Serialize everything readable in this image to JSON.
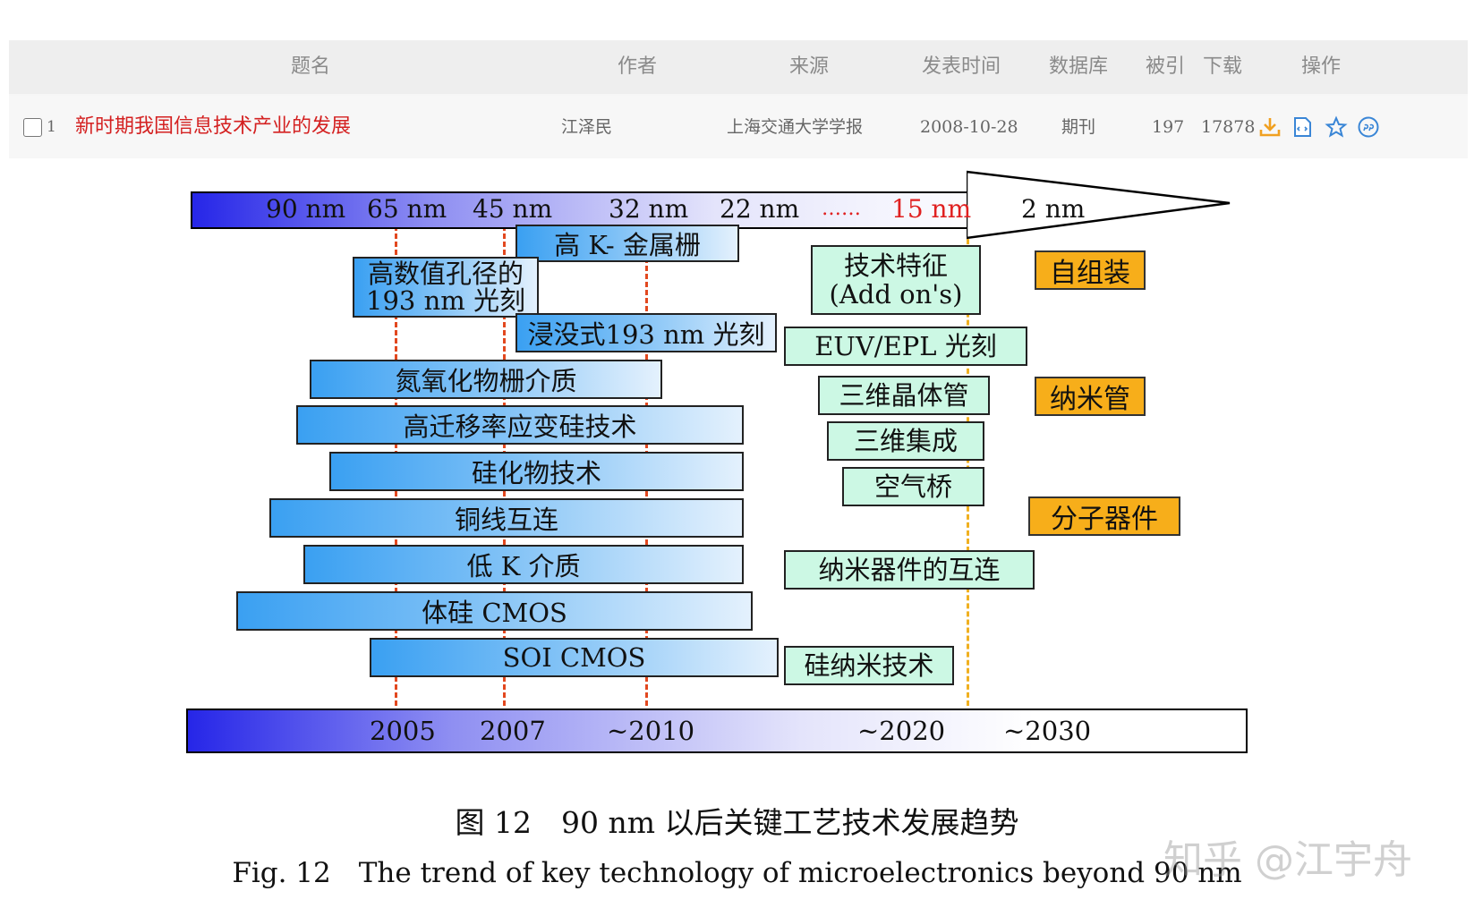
{
  "table": {
    "headers": {
      "title": "题名",
      "author": "作者",
      "source": "来源",
      "date": "发表时间",
      "database": "数据库",
      "cited": "被引",
      "downloads": "下载",
      "actions": "操作"
    },
    "row": {
      "index": "1",
      "title": "新时期我国信息技术产业的发展",
      "author": "江泽民",
      "source": "上海交通大学学报",
      "date": "2008-10-28",
      "database": "期刊",
      "cited": "197",
      "downloads": "17878"
    },
    "action_icons": [
      "download-icon",
      "html-reader-icon",
      "favorite-icon",
      "quote-icon"
    ]
  },
  "figure": {
    "nodes": [
      "90 nm",
      "65 nm",
      "45 nm",
      "32 nm",
      "22 nm",
      "……",
      "15 nm",
      "2 nm"
    ],
    "bars": [
      "高 K- 金属栅",
      "高数值孔径的",
      "193 nm 光刻",
      "浸没式193 nm 光刻",
      "氮氧化物栅介质",
      "高迁移率应变硅技术",
      "硅化物技术",
      "铜线互连",
      "低 K 介质",
      "体硅 CMOS",
      "SOI CMOS"
    ],
    "addons": {
      "line1": "技术特征",
      "line2": "(Add on's)",
      "items": [
        "EUV/EPL 光刻",
        "三维晶体管",
        "三维集成",
        "空气桥",
        "纳米器件的互连",
        "硅纳米技术"
      ]
    },
    "future": [
      "自组装",
      "纳米管",
      "分子器件"
    ],
    "years": [
      "2005",
      "2007",
      "~2010",
      "~2020",
      "~2030"
    ],
    "caption_cn": "图 12　90 nm 以后关键工艺技术发展趋势",
    "caption_en": "Fig. 12　The trend of key technology of microelectronics beyond 90 nm",
    "watermark": "知乎 @江宇舟"
  },
  "colors": {
    "title_red": "#d42121",
    "node_red": "#e02020",
    "bar_blue": "#3aa0f2",
    "green_box": "#ccf8e4",
    "orange_box": "#f7ae1a",
    "guide_red": "#e2481f",
    "guide_yellow": "#f0b020"
  }
}
